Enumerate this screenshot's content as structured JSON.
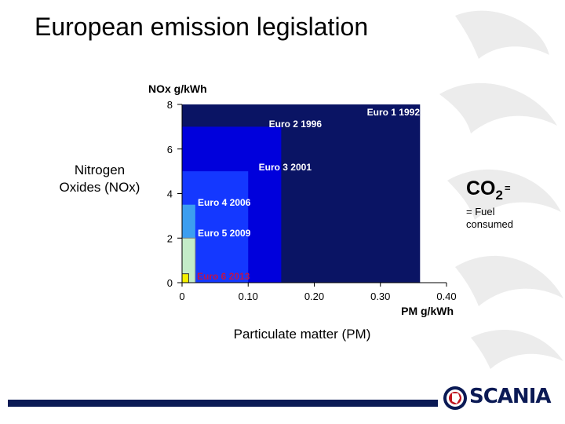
{
  "slide": {
    "title": "European emission legislation",
    "y_side_label_line1": "Nitrogen",
    "y_side_label_line2": "Oxides (NOx)",
    "x_side_label": "Particulate matter (PM)",
    "co2_formula": "CO",
    "co2_subscript": "2",
    "co2_equals": "=",
    "co2_description": "= Fuel consumed",
    "logo_text": "SCANIA"
  },
  "colors": {
    "euro1": "#0a1464",
    "euro2": "#0000dc",
    "euro3": "#1438ff",
    "euro4": "#3c9ef0",
    "euro5": "#c4ecc8",
    "euro6": "#f4f000",
    "footer": "#0b1a55",
    "label_white": "#ffffff",
    "label_euro6": "#c0144a"
  },
  "chart_data": {
    "type": "area",
    "title": "",
    "ylabel": "NOx g/kWh",
    "xlabel": "PM g/kWh",
    "xlim": [
      0,
      0.4
    ],
    "ylim": [
      0,
      8
    ],
    "x_ticks": [
      {
        "value": 0,
        "label": "0"
      },
      {
        "value": 0.1,
        "label": "0.10"
      },
      {
        "value": 0.2,
        "label": "0.20"
      },
      {
        "value": 0.3,
        "label": "0.30"
      },
      {
        "value": 0.4,
        "label": "0.40"
      }
    ],
    "y_ticks": [
      {
        "value": 0,
        "label": "0"
      },
      {
        "value": 2,
        "label": "2"
      },
      {
        "value": 4,
        "label": "4"
      },
      {
        "value": 6,
        "label": "6"
      },
      {
        "value": 8,
        "label": "8"
      }
    ],
    "grid": false,
    "legend": "none",
    "series": [
      {
        "name": "Euro 1 1992",
        "pm": 0.36,
        "nox": 8.0
      },
      {
        "name": "Euro 2 1996",
        "pm": 0.15,
        "nox": 7.0
      },
      {
        "name": "Euro 3 2001",
        "pm": 0.1,
        "nox": 5.0
      },
      {
        "name": "Euro 4 2006",
        "pm": 0.02,
        "nox": 3.5
      },
      {
        "name": "Euro 5 2009",
        "pm": 0.02,
        "nox": 2.0
      },
      {
        "name": "Euro 6 2013",
        "pm": 0.01,
        "nox": 0.4
      }
    ]
  }
}
